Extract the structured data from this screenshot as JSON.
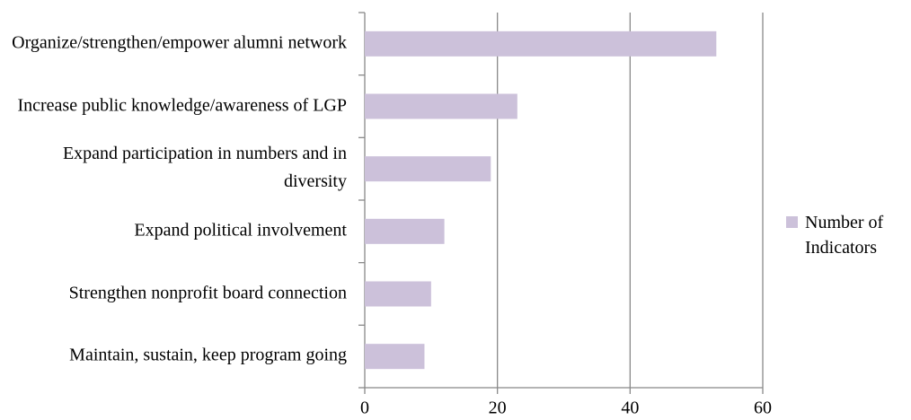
{
  "chart_data": {
    "type": "barh",
    "categories": [
      "Organize/strengthen/empower alumni network",
      "Increase public knowledge/awareness of LGP",
      "Expand participation in numbers and in diversity",
      "Expand political involvement",
      "Strengthen nonprofit board connection",
      "Maintain, sustain, keep program going"
    ],
    "series": [
      {
        "name": "Number of Indicators",
        "color": "#ccc1da",
        "values": [
          53,
          23,
          19,
          12,
          10,
          9
        ]
      }
    ],
    "xlim": [
      0,
      60
    ],
    "xticks": [
      0,
      20,
      40,
      60
    ],
    "grid": true,
    "legend": "right"
  }
}
